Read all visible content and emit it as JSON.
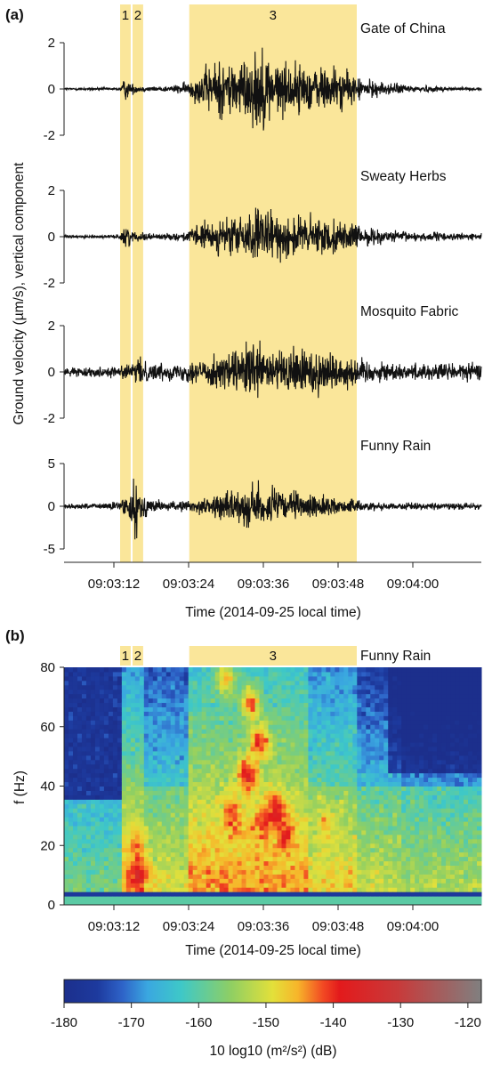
{
  "figure": {
    "panel_a": "(a)",
    "panel_b": "(b)"
  },
  "colors": {
    "highlight": "#fae69a",
    "trace": "#111111",
    "colormap": [
      "#1c2f8c",
      "#1d3a9e",
      "#2e63c8",
      "#3aa7e0",
      "#3ec8c8",
      "#8fcf63",
      "#e3e03a",
      "#f7b52a",
      "#f24a23",
      "#e31a1c",
      "#c83a3a",
      "#808080"
    ]
  },
  "chart_data": [
    {
      "type": "line",
      "panel": "(a)",
      "ylabel": "Ground velocity (µm/s), vertical component",
      "xlabel": "Time (2014-09-25 local time)",
      "x_ticks": [
        "09:03:12",
        "09:03:24",
        "09:03:36",
        "09:03:48",
        "09:04:00"
      ],
      "x_tick_seconds": [
        192,
        204,
        216,
        228,
        240
      ],
      "xlim_seconds": [
        184,
        251
      ],
      "highlight_windows": [
        {
          "label": "1",
          "start_s": 193.0,
          "end_s": 194.7
        },
        {
          "label": "2",
          "start_s": 195.0,
          "end_s": 196.7
        },
        {
          "label": "3",
          "start_s": 204.1,
          "end_s": 231.0
        }
      ],
      "series": [
        {
          "name": "Gate of China",
          "ylim": [
            -2.5,
            2.5
          ],
          "y_ticks": [
            2,
            0,
            -2
          ],
          "y_tick_labels": [
            "2",
            "0",
            "-2"
          ],
          "envelope": [
            [
              184,
              0.06
            ],
            [
              192,
              0.07
            ],
            [
              193,
              0.12
            ],
            [
              193.8,
              0.6
            ],
            [
              194.7,
              0.3
            ],
            [
              196,
              0.15
            ],
            [
              199,
              0.12
            ],
            [
              202,
              0.2
            ],
            [
              204,
              0.4
            ],
            [
              206,
              0.9
            ],
            [
              208,
              1.4
            ],
            [
              210,
              1.5
            ],
            [
              212,
              1.5
            ],
            [
              214,
              1.6
            ],
            [
              215.5,
              2.3
            ],
            [
              216.5,
              1.8
            ],
            [
              218,
              1.4
            ],
            [
              220,
              1.3
            ],
            [
              222,
              1.25
            ],
            [
              224,
              1.1
            ],
            [
              226,
              1.2
            ],
            [
              228,
              1.1
            ],
            [
              230,
              0.8
            ],
            [
              232,
              0.5
            ],
            [
              235,
              0.35
            ],
            [
              240,
              0.2
            ],
            [
              245,
              0.12
            ],
            [
              251,
              0.08
            ]
          ]
        },
        {
          "name": "Sweaty Herbs",
          "ylim": [
            -2.5,
            2.5
          ],
          "y_ticks": [
            2,
            0,
            -2
          ],
          "y_tick_labels": [
            "2",
            "0",
            "-2"
          ],
          "envelope": [
            [
              184,
              0.07
            ],
            [
              192,
              0.08
            ],
            [
              193,
              0.15
            ],
            [
              193.8,
              0.75
            ],
            [
              194.7,
              0.3
            ],
            [
              196,
              0.2
            ],
            [
              200,
              0.15
            ],
            [
              203,
              0.2
            ],
            [
              205,
              0.5
            ],
            [
              207,
              0.8
            ],
            [
              210,
              0.9
            ],
            [
              213,
              1.1
            ],
            [
              215,
              1.4
            ],
            [
              217,
              1.2
            ],
            [
              220,
              1.1
            ],
            [
              223,
              1.1
            ],
            [
              226,
              0.9
            ],
            [
              229,
              0.75
            ],
            [
              232,
              0.5
            ],
            [
              236,
              0.3
            ],
            [
              240,
              0.25
            ],
            [
              246,
              0.2
            ],
            [
              251,
              0.15
            ]
          ]
        },
        {
          "name": "Mosquito Fabric",
          "ylim": [
            -2.5,
            2.5
          ],
          "y_ticks": [
            2,
            0,
            -2
          ],
          "y_tick_labels": [
            "2",
            "0",
            "-2"
          ],
          "envelope": [
            [
              184,
              0.2
            ],
            [
              190,
              0.25
            ],
            [
              193,
              0.3
            ],
            [
              195,
              0.4
            ],
            [
              196,
              0.7
            ],
            [
              198,
              0.45
            ],
            [
              202,
              0.4
            ],
            [
              205,
              0.6
            ],
            [
              208,
              0.8
            ],
            [
              211,
              1.0
            ],
            [
              213,
              1.3
            ],
            [
              215,
              1.4
            ],
            [
              217,
              1.2
            ],
            [
              219,
              1.0
            ],
            [
              221,
              1.2
            ],
            [
              223,
              1.4
            ],
            [
              225,
              1.2
            ],
            [
              228,
              0.9
            ],
            [
              231,
              0.7
            ],
            [
              234,
              0.55
            ],
            [
              238,
              0.4
            ],
            [
              243,
              0.45
            ],
            [
              247,
              0.5
            ],
            [
              251,
              0.4
            ]
          ]
        },
        {
          "name": "Funny Rain",
          "ylim": [
            -6.5,
            6.5
          ],
          "y_ticks": [
            5,
            0,
            -5
          ],
          "y_tick_labels": [
            "5",
            "0",
            "-5"
          ],
          "envelope": [
            [
              184,
              0.35
            ],
            [
              190,
              0.4
            ],
            [
              192.5,
              0.6
            ],
            [
              193.8,
              2.0
            ],
            [
              194.5,
              1.2
            ],
            [
              195.5,
              4.8
            ],
            [
              196.2,
              2.0
            ],
            [
              198,
              0.9
            ],
            [
              202,
              0.6
            ],
            [
              205,
              0.9
            ],
            [
              208,
              1.5
            ],
            [
              211,
              2.0
            ],
            [
              213,
              2.5
            ],
            [
              215,
              3.1
            ],
            [
              217,
              2.6
            ],
            [
              220,
              2.0
            ],
            [
              223,
              1.6
            ],
            [
              226,
              1.4
            ],
            [
              229,
              1.0
            ],
            [
              232,
              0.7
            ],
            [
              236,
              0.5
            ],
            [
              240,
              0.45
            ],
            [
              246,
              0.45
            ],
            [
              251,
              0.4
            ]
          ]
        }
      ]
    },
    {
      "type": "heatmap",
      "panel": "(b)",
      "title": "Funny Rain",
      "ylabel": "f (Hz)",
      "xlabel": "Time (2014-09-25 local time)",
      "x_ticks": [
        "09:03:12",
        "09:03:24",
        "09:03:36",
        "09:03:48",
        "09:04:00"
      ],
      "x_tick_seconds": [
        192,
        204,
        216,
        228,
        240
      ],
      "xlim_seconds": [
        184,
        251
      ],
      "ylim": [
        0,
        80
      ],
      "y_ticks": [
        0,
        20,
        40,
        60,
        80
      ],
      "y_tick_labels": [
        "0",
        "20",
        "40",
        "60",
        "80"
      ],
      "highlight_windows": [
        {
          "label": "1",
          "start_s": 193.0,
          "end_s": 194.7
        },
        {
          "label": "2",
          "start_s": 195.0,
          "end_s": 196.7
        },
        {
          "label": "3",
          "start_s": 204.1,
          "end_s": 231.0
        }
      ],
      "hotspots": [
        {
          "t": 196.0,
          "f": 10,
          "dB": -136
        },
        {
          "t": 195.5,
          "f": 20,
          "dB": -143
        },
        {
          "t": 211.0,
          "f": 30,
          "dB": -141
        },
        {
          "t": 213.5,
          "f": 44,
          "dB": -137
        },
        {
          "t": 215.5,
          "f": 55,
          "dB": -140
        },
        {
          "t": 216.0,
          "f": 28,
          "dB": -139
        },
        {
          "t": 218.0,
          "f": 32,
          "dB": -138
        },
        {
          "t": 219.5,
          "f": 24,
          "dB": -140
        },
        {
          "t": 214.0,
          "f": 68,
          "dB": -143
        },
        {
          "t": 210.0,
          "f": 76,
          "dB": -146
        },
        {
          "t": 226.0,
          "f": 27,
          "dB": -146
        },
        {
          "t": 214.0,
          "f": 10,
          "dB": -146
        }
      ]
    },
    {
      "type": "colorbar",
      "label": "10 log10 (m²/s²) (dB)",
      "range": [
        -180,
        -118
      ],
      "ticks": [
        -180,
        -170,
        -160,
        -150,
        -140,
        -130,
        -120
      ],
      "tick_labels": [
        "-180",
        "-170",
        "-160",
        "-150",
        "-140",
        "-130",
        "-120"
      ]
    }
  ]
}
